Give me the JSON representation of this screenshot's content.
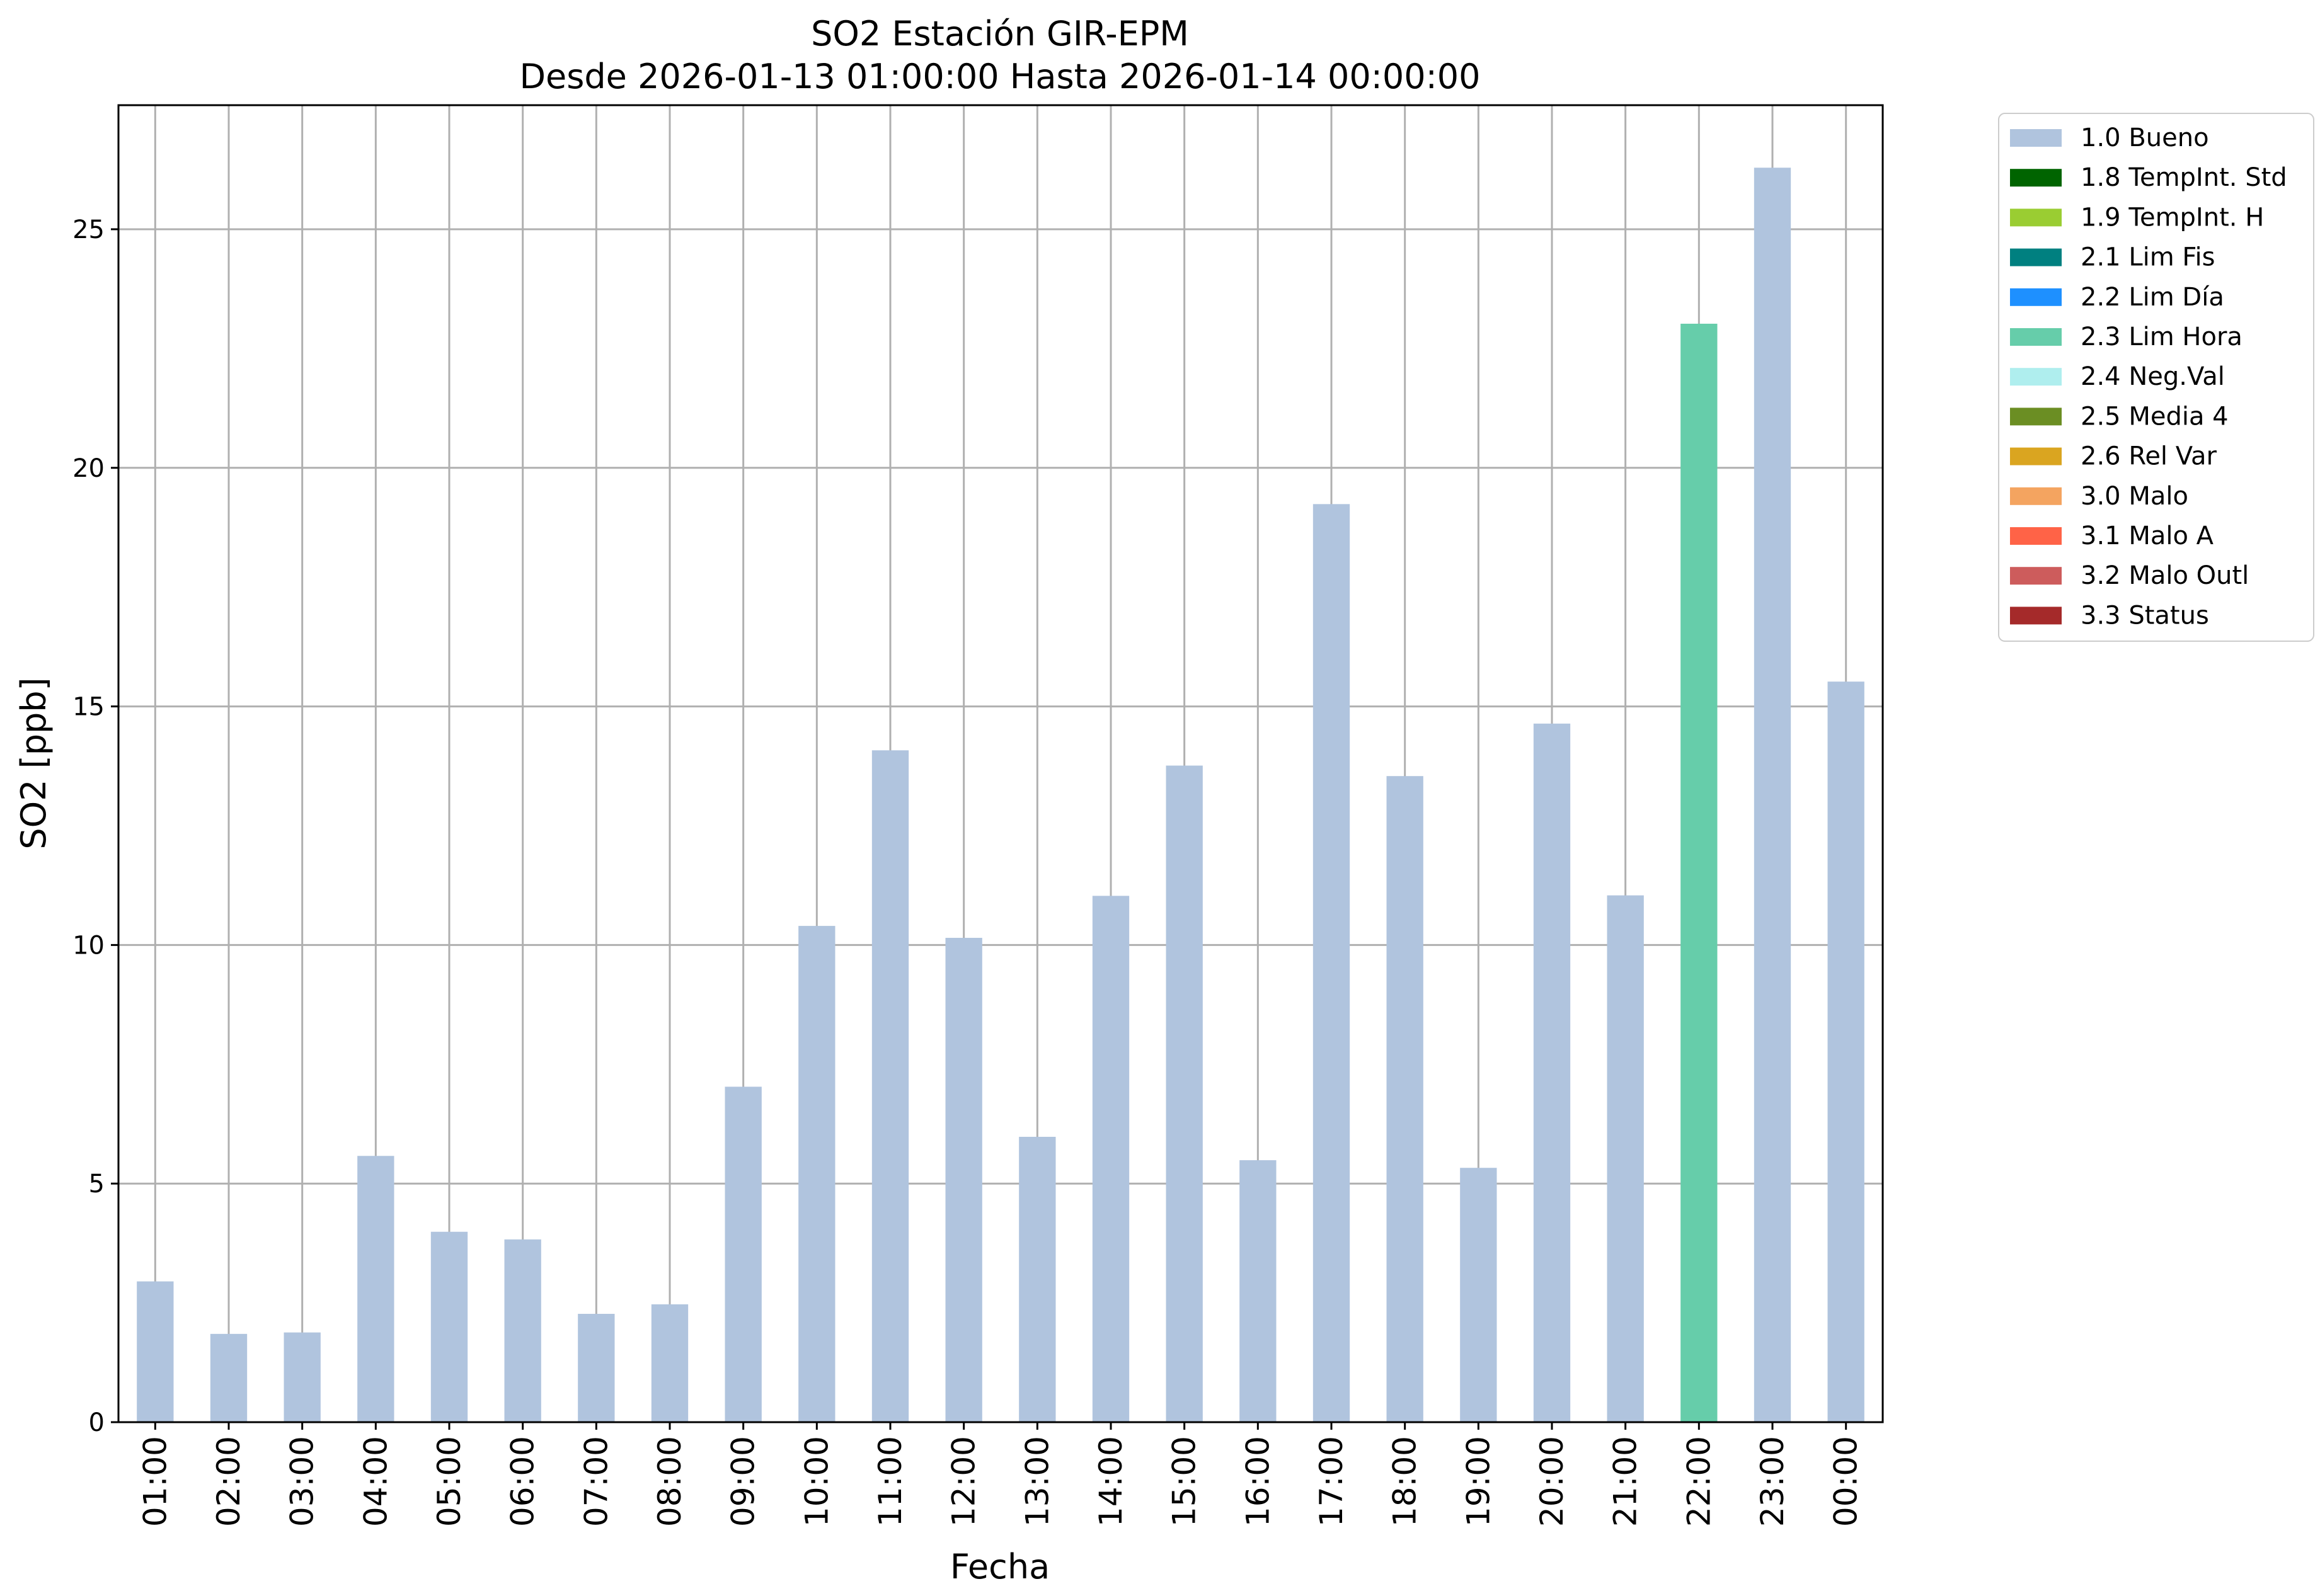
{
  "chart_data": {
    "type": "bar",
    "title": "SO2 Estación GIR-EPM",
    "subtitle": "Desde 2026-01-13 01:00:00 Hasta 2026-01-14 00:00:00",
    "xlabel": "Fecha",
    "ylabel": "SO2 [ppb]",
    "ylim": [
      0,
      27.6
    ],
    "yticks": [
      0,
      5,
      10,
      15,
      20,
      25
    ],
    "grid": true,
    "legend_position": "outside-top-right",
    "categories": [
      "01:00",
      "02:00",
      "03:00",
      "04:00",
      "05:00",
      "06:00",
      "07:00",
      "08:00",
      "09:00",
      "10:00",
      "11:00",
      "12:00",
      "13:00",
      "14:00",
      "15:00",
      "16:00",
      "17:00",
      "18:00",
      "19:00",
      "20:00",
      "21:00",
      "22:00",
      "23:00",
      "00:00"
    ],
    "values": [
      2.95,
      1.85,
      1.88,
      5.58,
      3.99,
      3.83,
      2.27,
      2.47,
      7.03,
      10.4,
      14.08,
      10.15,
      5.98,
      11.03,
      13.76,
      5.49,
      19.24,
      13.54,
      5.33,
      14.64,
      11.04,
      23.02,
      26.29,
      15.52
    ],
    "flags": [
      "1.0 Bueno",
      "1.0 Bueno",
      "1.0 Bueno",
      "1.0 Bueno",
      "1.0 Bueno",
      "1.0 Bueno",
      "1.0 Bueno",
      "1.0 Bueno",
      "1.0 Bueno",
      "1.0 Bueno",
      "1.0 Bueno",
      "1.0 Bueno",
      "1.0 Bueno",
      "1.0 Bueno",
      "1.0 Bueno",
      "1.0 Bueno",
      "1.0 Bueno",
      "1.0 Bueno",
      "1.0 Bueno",
      "1.0 Bueno",
      "1.0 Bueno",
      "2.3 Lim Hora",
      "1.0 Bueno",
      "1.0 Bueno"
    ],
    "legend": [
      {
        "name": "1.0 Bueno",
        "color": "#b0c4de"
      },
      {
        "name": "1.8 TempInt. Std",
        "color": "#006400"
      },
      {
        "name": "1.9 TempInt. H",
        "color": "#9acd32"
      },
      {
        "name": "2.1 Lim Fis",
        "color": "#008080"
      },
      {
        "name": "2.2 Lim Día",
        "color": "#1e90ff"
      },
      {
        "name": "2.3 Lim Hora",
        "color": "#66cdaa"
      },
      {
        "name": "2.4 Neg.Val",
        "color": "#afeeee"
      },
      {
        "name": "2.5 Media 4",
        "color": "#6b8e23"
      },
      {
        "name": "2.6 Rel Var",
        "color": "#daa520"
      },
      {
        "name": "3.0 Malo",
        "color": "#f4a460"
      },
      {
        "name": "3.1 Malo A",
        "color": "#ff6347"
      },
      {
        "name": "3.2 Malo Outl",
        "color": "#cd5c5c"
      },
      {
        "name": "3.3 Status",
        "color": "#a52a2a"
      }
    ]
  }
}
